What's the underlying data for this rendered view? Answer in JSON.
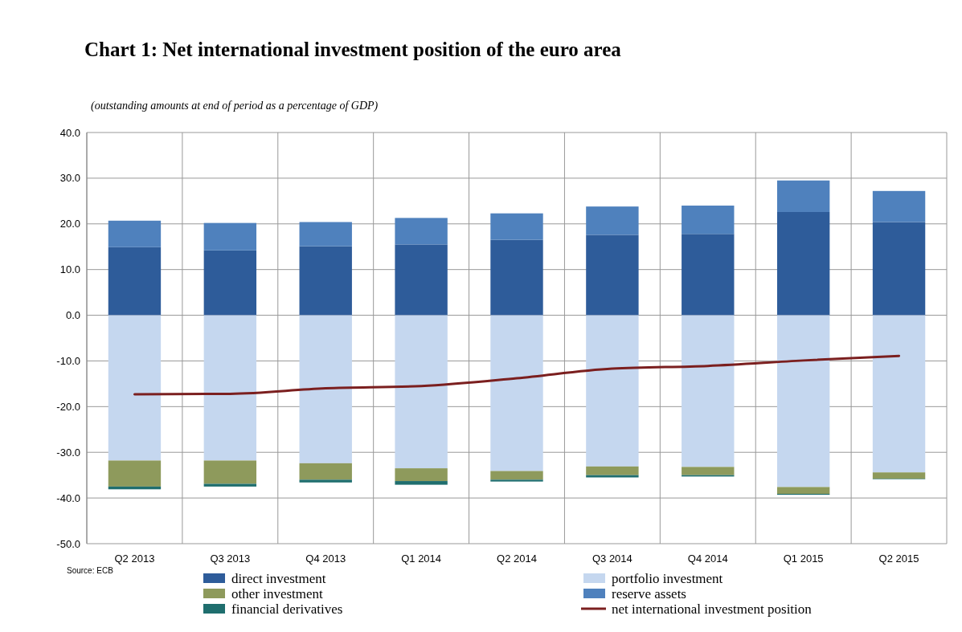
{
  "chart_data": {
    "type": "bar",
    "stacked": true,
    "title": "Chart 1: Net international investment position of the euro area",
    "subtitle": "(outstanding amounts at end of period as a percentage of GDP)",
    "annotations": [
      "Source: ECB"
    ],
    "categories": [
      "Q2 2013",
      "Q3 2013",
      "Q4 2013",
      "Q1 2014",
      "Q2 2014",
      "Q3 2014",
      "Q4 2014",
      "Q1 2015",
      "Q2 2015"
    ],
    "ylim": [
      -50,
      40
    ],
    "yticks": [
      {
        "value": -50,
        "label": "-50.0"
      },
      {
        "value": -40,
        "label": "-40.0"
      },
      {
        "value": -30,
        "label": "-30.0"
      },
      {
        "value": -20,
        "label": "-20.0"
      },
      {
        "value": -10,
        "label": "-10.0"
      },
      {
        "value": 0,
        "label": "0.0"
      },
      {
        "value": 10,
        "label": "10.0"
      },
      {
        "value": 20,
        "label": "20.0"
      },
      {
        "value": 30,
        "label": "30.0"
      },
      {
        "value": 40,
        "label": "40.0"
      }
    ],
    "grid": true,
    "legend": "bottom",
    "series": [
      {
        "name": "direct investment",
        "color": "#2e5c9a",
        "values": [
          14.9,
          14.2,
          15.1,
          15.5,
          16.5,
          17.6,
          17.8,
          22.6,
          20.4
        ]
      },
      {
        "name": "portfolio investment",
        "color": "#c5d7ef",
        "values": [
          -31.8,
          -31.8,
          -32.4,
          -33.5,
          -34.1,
          -33.1,
          -33.2,
          -37.6,
          -34.4
        ]
      },
      {
        "name": "other investment",
        "color": "#8e9a5c",
        "values": [
          -5.7,
          -5.1,
          -3.6,
          -2.8,
          -1.9,
          -1.9,
          -1.8,
          -1.5,
          -1.4
        ]
      },
      {
        "name": "reserve assets",
        "color": "#4f81bd",
        "values": [
          5.8,
          6.0,
          5.3,
          5.8,
          5.8,
          6.2,
          6.2,
          6.9,
          6.8
        ]
      },
      {
        "name": "financial derivatives",
        "color": "#1f6e6e",
        "values": [
          -0.6,
          -0.6,
          -0.6,
          -0.8,
          -0.4,
          -0.5,
          -0.3,
          -0.2,
          -0.1
        ]
      },
      {
        "name": "net international investment position",
        "type": "line",
        "color": "#7b1f1f",
        "values": [
          -17.3,
          -17.2,
          -16.0,
          -15.5,
          -13.8,
          -11.7,
          -11.1,
          -9.9,
          -8.9
        ]
      }
    ]
  }
}
